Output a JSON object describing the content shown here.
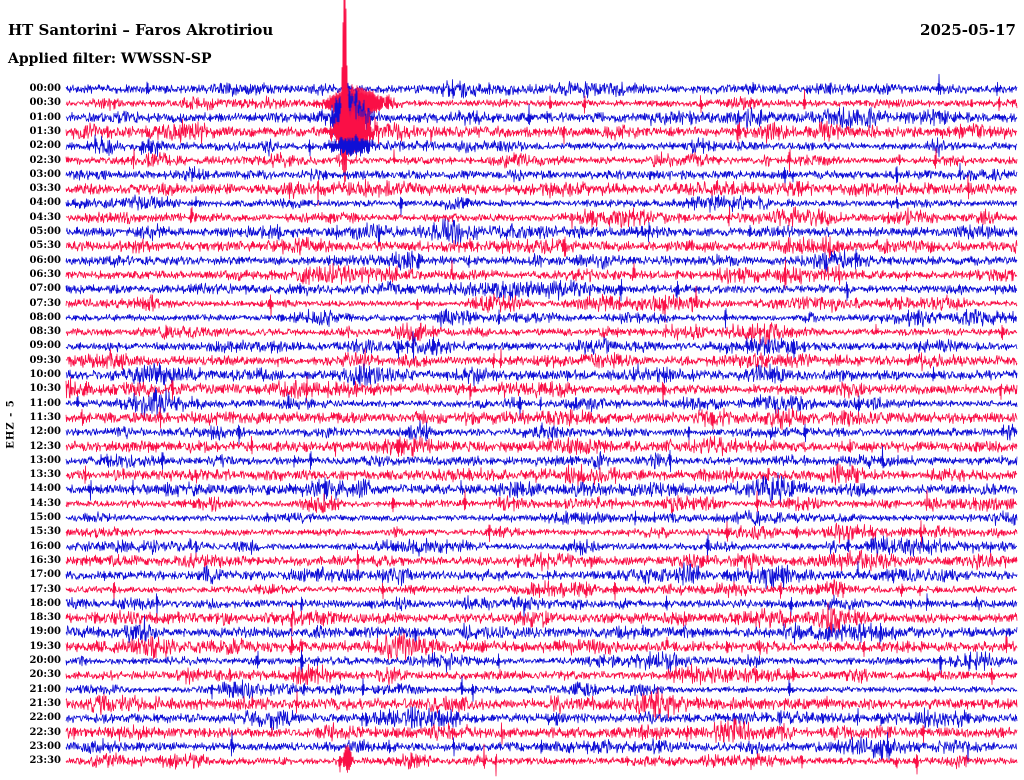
{
  "header": {
    "title": "HT Santorini – Faros Akrotiriou",
    "date": "2025-05-17",
    "filter": "Applied filter: WWSSN-SP"
  },
  "y_axis_label": "EHZ - 5",
  "chart_data": {
    "type": "line",
    "subtype": "helicorder-seismogram",
    "title": "HT Santorini – Faros Akrotiriou",
    "date": "2025-05-17",
    "applied_filter": "WWSSN-SP",
    "channel": "EHZ - 5",
    "minutes_per_row": 30,
    "rows_count": 48,
    "row_colors": {
      "even": "#0f0fd6",
      "odd": "#fa0f46"
    },
    "rows": [
      "00:00",
      "00:30",
      "01:00",
      "01:30",
      "02:00",
      "02:30",
      "03:00",
      "03:30",
      "04:00",
      "04:30",
      "05:00",
      "05:30",
      "06:00",
      "06:30",
      "07:00",
      "07:30",
      "08:00",
      "08:30",
      "09:00",
      "09:30",
      "10:00",
      "10:30",
      "11:00",
      "11:30",
      "12:00",
      "12:30",
      "13:00",
      "13:30",
      "14:00",
      "14:30",
      "15:00",
      "15:30",
      "16:00",
      "16:30",
      "17:00",
      "17:30",
      "18:00",
      "18:30",
      "19:00",
      "19:30",
      "20:00",
      "20:30",
      "21:00",
      "21:30",
      "22:00",
      "22:30",
      "23:00",
      "23:30"
    ],
    "events": [
      {
        "time": "00:30",
        "x_frac": 0.305,
        "amp": 16,
        "width": 26,
        "down_ratio": 0.9,
        "note": "elevated noise"
      },
      {
        "time": "01:00",
        "x_frac": 0.298,
        "amp": 26,
        "width": 16,
        "down_ratio": 0.9,
        "note": "elevated noise"
      },
      {
        "time": "01:30",
        "x_frac": 0.293,
        "amp": 150,
        "width": 2.2,
        "down_ratio": 0.22,
        "note": "large spike reaching top of plot"
      },
      {
        "time": "01:30",
        "x_frac": 0.302,
        "amp": 22,
        "width": 18,
        "down_ratio": 0.9,
        "note": "event coda"
      },
      {
        "time": "02:00",
        "x_frac": 0.3,
        "amp": 9,
        "width": 20,
        "down_ratio": 0.9,
        "note": "residual noise"
      },
      {
        "time": "23:30",
        "x_frac": 0.296,
        "amp": 15,
        "width": 4,
        "down_ratio": 0.6,
        "note": "small spike"
      }
    ],
    "x_axis": "time within line (30 minutes per trace line)",
    "grid": false,
    "legend": false
  }
}
